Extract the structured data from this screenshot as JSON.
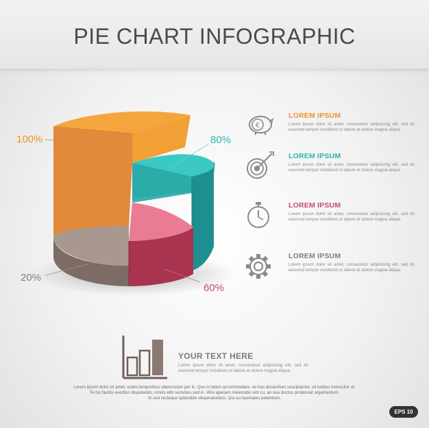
{
  "header": {
    "title": "PIE CHART INFOGRAPHIC"
  },
  "chart_data": {
    "type": "pie",
    "series": [
      {
        "label": "100%",
        "value": 100,
        "color": "#e89330"
      },
      {
        "label": "80%",
        "value": 80,
        "color": "#2bb3b1"
      },
      {
        "label": "60%",
        "value": 60,
        "color": "#c74a6a"
      },
      {
        "label": "20%",
        "value": 20,
        "color": "#8a7a72"
      }
    ],
    "label_colors": {
      "100%": "#e89330",
      "80%": "#2bb3b1",
      "60%": "#c74a6a",
      "20%": "#8a7a72"
    }
  },
  "info_items": [
    {
      "icon": "piggy-bank-euro-icon",
      "title": "LOREM IPSUM",
      "title_color": "#e89330",
      "text": "Lorem ipsum dolor sit amet, consectetur adipisicing elit, sed do eiusmod tempor incididunt ut labore et dolore magna aliqua."
    },
    {
      "icon": "target-arrow-icon",
      "title": "LOREM IPSUM",
      "title_color": "#2bb3b1",
      "text": "Lorem ipsum dolor sit amet, consectetur adipisicing elit, sed do eiusmod tempor incididunt ut labore et dolore magna aliqua."
    },
    {
      "icon": "stopwatch-icon",
      "title": "LOREM IPSUM",
      "title_color": "#c74a6a",
      "text": "Lorem ipsum dolor sit amet, consectetur adipisicing elit, sed do eiusmod tempor incididunt ut labore et dolore magna aliqua."
    },
    {
      "icon": "gear-icon",
      "title": "LOREM IPSUM",
      "title_color": "#8a7a72",
      "text": "Lorem ipsum dolor sit amet, consectetur adipisicing elit, sed do eiusmod tempor incididunt ut labore et dolore magna aliqua."
    }
  ],
  "summary": {
    "icon": "bar-chart-icon",
    "title": "YOUR TEXT HERE",
    "text": "Lorem ipsum dolor sit amet, consectetur adipisicing elit, sed do eiusmod tempor incididunt ut labore et dolore magna aliqua."
  },
  "footer": {
    "lines": [
      "Lorem ipsum dolor sit amet, oratio temporibus ullamcorper per in. Quo in tation accommodare, ne has dissentiunt suscipiantur, sit lucilius instructior at.",
      "Te his facilisi evertitur disputando, omnis elitr sensibus sed in. Wisi aperiam maiestatis vim cu, an sea doctus prodesset argumentum.",
      "In sed recteque splendide vituperatoribus. Qui eu tacimates petentium."
    ],
    "badge": "EPS 10"
  }
}
